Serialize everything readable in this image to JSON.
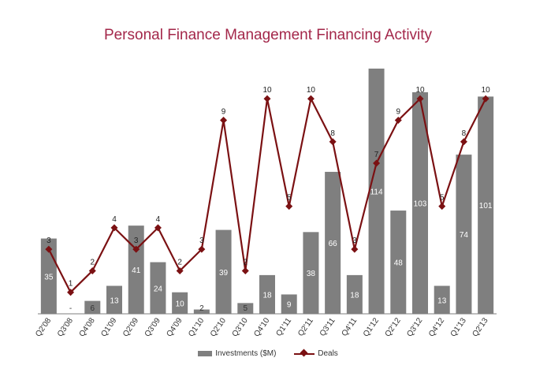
{
  "chart_data": {
    "type": "bar",
    "title": "Personal Finance Management Financing Activity",
    "categories": [
      "Q2'08",
      "Q3'08",
      "Q4'08",
      "Q1'09",
      "Q2'09",
      "Q3'09",
      "Q4'09",
      "Q1'10",
      "Q2'10",
      "Q3'10",
      "Q4'10",
      "Q1'11",
      "Q2'11",
      "Q3'11",
      "Q4'11",
      "Q1'12",
      "Q2'12",
      "Q3'12",
      "Q4'12",
      "Q1'13",
      "Q2'13"
    ],
    "series": [
      {
        "name": "Investments ($M)",
        "type": "bar",
        "values": [
          35,
          0,
          6,
          13,
          41,
          24,
          10,
          2,
          39,
          5,
          18,
          9,
          38,
          66,
          18,
          114,
          48,
          103,
          13,
          74,
          101
        ],
        "labels": [
          "35",
          "-",
          "6",
          "13",
          "41",
          "24",
          "10",
          "2",
          "39",
          "5",
          "18",
          "9",
          "38",
          "66",
          "18",
          "114",
          "48",
          "103",
          "13",
          "74",
          "101"
        ],
        "color": "#7f7f7f"
      },
      {
        "name": "Deals",
        "type": "line",
        "values": [
          3,
          1,
          2,
          4,
          3,
          4,
          2,
          3,
          9,
          2,
          10,
          5,
          10,
          8,
          3,
          7,
          9,
          10,
          5,
          8,
          10
        ],
        "color": "#7b1113"
      }
    ],
    "bar_ylim": [
      0,
      114
    ],
    "line_ylim": [
      0,
      11.4
    ],
    "grid": false,
    "legend_position": "bottom"
  }
}
